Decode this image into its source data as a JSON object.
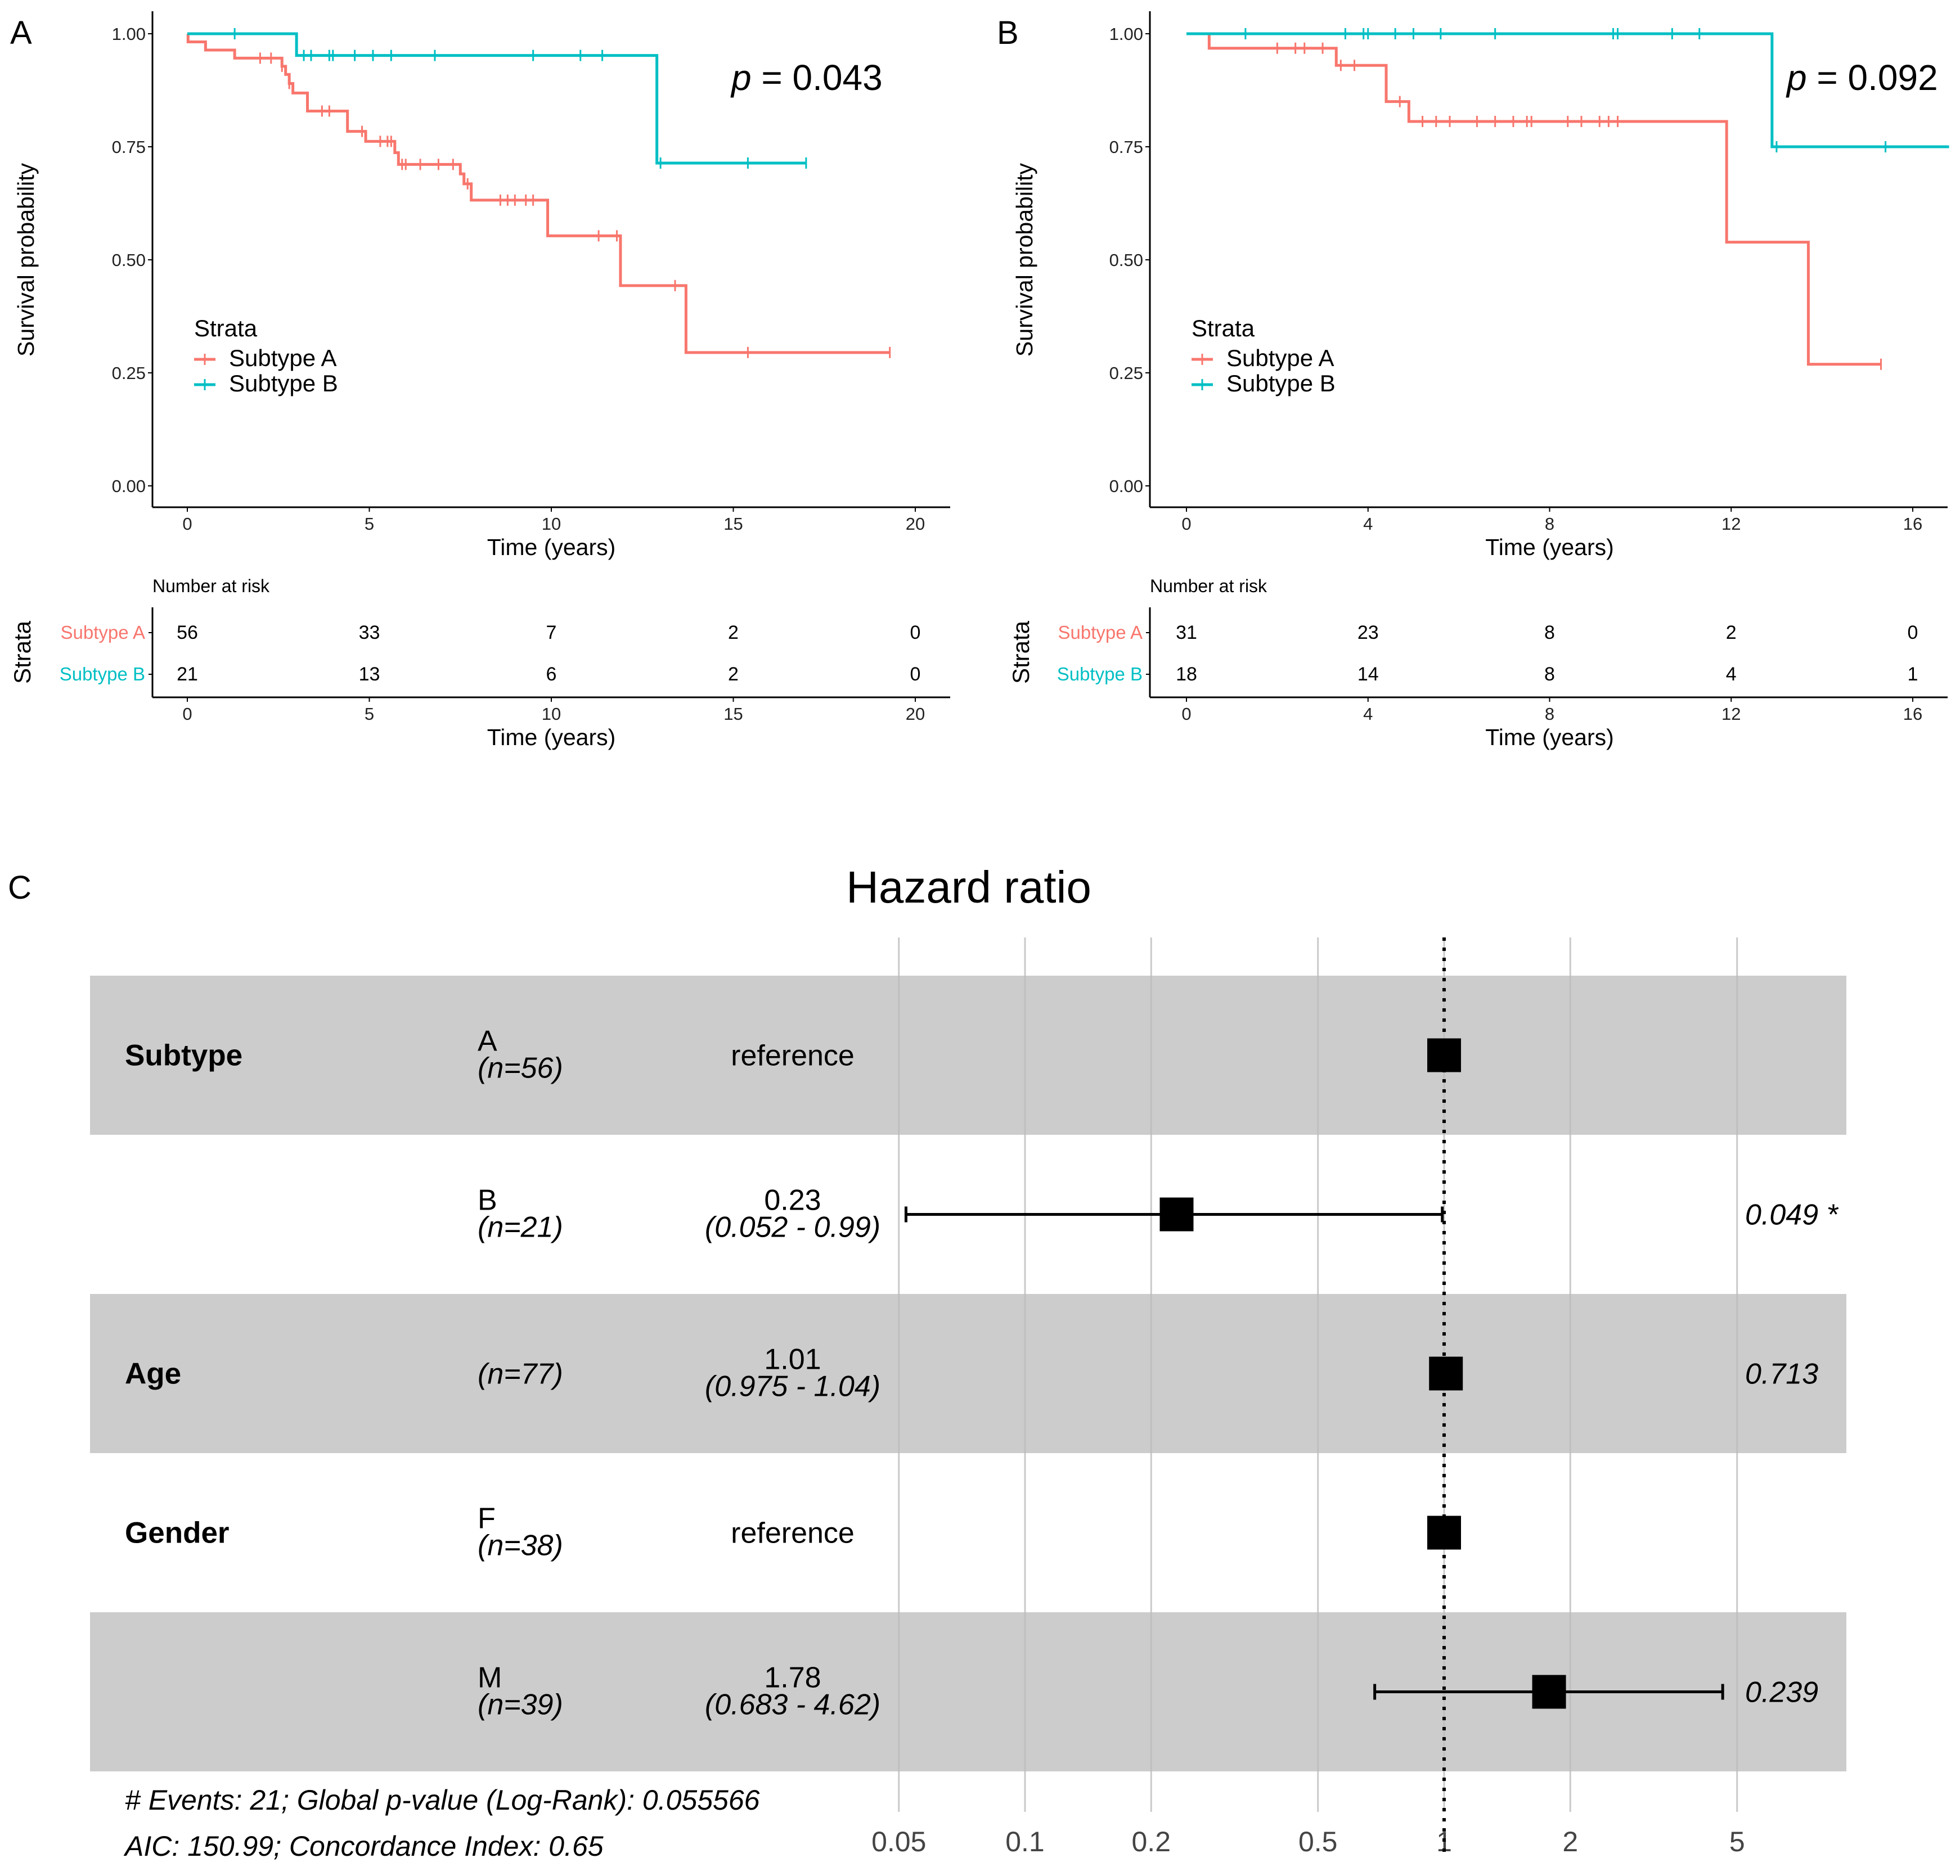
{
  "colors": {
    "subtype_a": "#F8766D",
    "subtype_b": "#00BFC4",
    "band": "#CCCCCC",
    "grid": "#BDBDBD"
  },
  "chart_data": [
    {
      "type": "line",
      "panel": "A",
      "p_label": "p",
      "p_value": "= 0.043",
      "ylabel": "Survival probability",
      "xlabel": "Time (years)",
      "xlim": [
        0,
        20
      ],
      "ylim": [
        0,
        1
      ],
      "xticks": [
        "0",
        "5",
        "10",
        "15",
        "20"
      ],
      "yticks": [
        "0.00",
        "0.25",
        "0.50",
        "0.75",
        "1.00"
      ],
      "legend": {
        "title": "Strata",
        "placement": "left",
        "entries": [
          "Subtype A",
          "Subtype B"
        ]
      },
      "series": [
        {
          "name": "Subtype A",
          "steps": [
            [
              0,
              1.0
            ],
            [
              0.02,
              0.982
            ],
            [
              0.5,
              0.964
            ],
            [
              1.3,
              0.946
            ],
            [
              2.6,
              0.928
            ],
            [
              2.7,
              0.91
            ],
            [
              2.8,
              0.89
            ],
            [
              2.9,
              0.869
            ],
            [
              3.3,
              0.829
            ],
            [
              4.4,
              0.784
            ],
            [
              4.9,
              0.762
            ],
            [
              5.7,
              0.737
            ],
            [
              5.8,
              0.711
            ],
            [
              7.5,
              0.69
            ],
            [
              7.6,
              0.668
            ],
            [
              7.8,
              0.632
            ],
            [
              9.9,
              0.553
            ],
            [
              11.9,
              0.443
            ],
            [
              13.7,
              0.295
            ],
            [
              19.3,
              0.295
            ]
          ],
          "censor": [
            2.0,
            2.3,
            2.6,
            2.8,
            3.7,
            3.9,
            4.8,
            5.3,
            5.5,
            5.6,
            5.9,
            6.0,
            6.4,
            6.9,
            7.3,
            7.7,
            8.6,
            8.8,
            9.0,
            9.3,
            9.5,
            11.3,
            11.8,
            13.4,
            15.4,
            19.3
          ]
        },
        {
          "name": "Subtype B",
          "steps": [
            [
              0,
              1.0
            ],
            [
              3.0,
              0.952
            ],
            [
              12.9,
              0.714
            ],
            [
              17.0,
              0.714
            ]
          ],
          "censor": [
            1.3,
            3.2,
            3.4,
            3.9,
            4.0,
            4.6,
            5.1,
            5.6,
            6.8,
            9.5,
            10.8,
            11.4,
            13.0,
            15.4,
            17.0
          ]
        }
      ],
      "risk_table": {
        "title": "Number at risk",
        "ylabel": "Strata",
        "xlabel": "Time (years)",
        "rows": [
          {
            "label": "Subtype A",
            "values": [
              "56",
              "33",
              "7",
              "2",
              "0"
            ]
          },
          {
            "label": "Subtype B",
            "values": [
              "21",
              "13",
              "6",
              "2",
              "0"
            ]
          }
        ]
      }
    },
    {
      "type": "line",
      "panel": "B",
      "p_label": "p",
      "p_value": "= 0.092",
      "ylabel": "Survival probability",
      "xlabel": "Time (years)",
      "xlim": [
        0,
        16
      ],
      "ylim": [
        0,
        1
      ],
      "xticks": [
        "0",
        "4",
        "8",
        "12",
        "16"
      ],
      "yticks": [
        "0.00",
        "0.25",
        "0.50",
        "0.75",
        "1.00"
      ],
      "legend": {
        "title": "Strata",
        "placement": "left",
        "entries": [
          "Subtype A",
          "Subtype B"
        ]
      },
      "series": [
        {
          "name": "Subtype A",
          "steps": [
            [
              0,
              1.0
            ],
            [
              0.5,
              0.968
            ],
            [
              3.3,
              0.93
            ],
            [
              4.4,
              0.85
            ],
            [
              4.9,
              0.806
            ],
            [
              11.9,
              0.539
            ],
            [
              13.7,
              0.269
            ],
            [
              15.3,
              0.269
            ]
          ],
          "censor": [
            2.0,
            2.4,
            2.6,
            3.0,
            3.4,
            3.7,
            4.7,
            5.2,
            5.5,
            5.8,
            6.4,
            6.8,
            7.2,
            7.5,
            7.6,
            8.4,
            8.7,
            9.1,
            9.3,
            9.5,
            15.3
          ]
        },
        {
          "name": "Subtype B",
          "steps": [
            [
              0,
              1.0
            ],
            [
              12.9,
              0.75
            ],
            [
              16.8,
              0.75
            ]
          ],
          "censor": [
            1.3,
            3.5,
            3.9,
            4.0,
            4.6,
            5.0,
            5.6,
            6.8,
            9.4,
            9.5,
            10.7,
            11.3,
            13.0,
            15.4
          ]
        }
      ],
      "risk_table": {
        "title": "Number at risk",
        "ylabel": "Strata",
        "xlabel": "Time (years)",
        "rows": [
          {
            "label": "Subtype A",
            "values": [
              "31",
              "23",
              "8",
              "2",
              "0"
            ]
          },
          {
            "label": "Subtype B",
            "values": [
              "18",
              "14",
              "8",
              "4",
              "1"
            ]
          }
        ]
      }
    },
    {
      "type": "forest",
      "panel": "C",
      "title": "Hazard ratio",
      "xscale": "log",
      "xlim": [
        0.05,
        7.5
      ],
      "xticks": [
        0.05,
        0.1,
        0.2,
        0.5,
        1,
        2,
        5
      ],
      "xtick_labels": [
        "0.05",
        "0.1",
        "0.2",
        "0.5",
        "1",
        "2",
        "5"
      ],
      "reference_line": 1,
      "rows": [
        {
          "variable": "Subtype",
          "level": "A",
          "n": "(n=56)",
          "estimate": "reference",
          "ci": "",
          "hr": 1,
          "lo": null,
          "hi": null,
          "p": "",
          "shaded": true
        },
        {
          "variable": "",
          "level": "B",
          "n": "(n=21)",
          "estimate": "0.23",
          "ci": "(0.052 - 0.99)",
          "hr": 0.23,
          "lo": 0.052,
          "hi": 0.99,
          "p": "0.049 *",
          "shaded": false
        },
        {
          "variable": "Age",
          "level": "",
          "n": "(n=77)",
          "estimate": "1.01",
          "ci": "(0.975 - 1.04)",
          "hr": 1.01,
          "lo": 0.975,
          "hi": 1.04,
          "p": "0.713",
          "shaded": true
        },
        {
          "variable": "Gender",
          "level": "F",
          "n": "(n=38)",
          "estimate": "reference",
          "ci": "",
          "hr": 1,
          "lo": null,
          "hi": null,
          "p": "",
          "shaded": false
        },
        {
          "variable": "",
          "level": "M",
          "n": "(n=39)",
          "estimate": "1.78",
          "ci": "(0.683 - 4.62)",
          "hr": 1.78,
          "lo": 0.683,
          "hi": 4.62,
          "p": "0.239",
          "shaded": true
        }
      ],
      "footer": [
        "# Events: 21; Global p-value (Log-Rank): 0.055566",
        "AIC: 150.99; Concordance Index: 0.65"
      ]
    }
  ]
}
